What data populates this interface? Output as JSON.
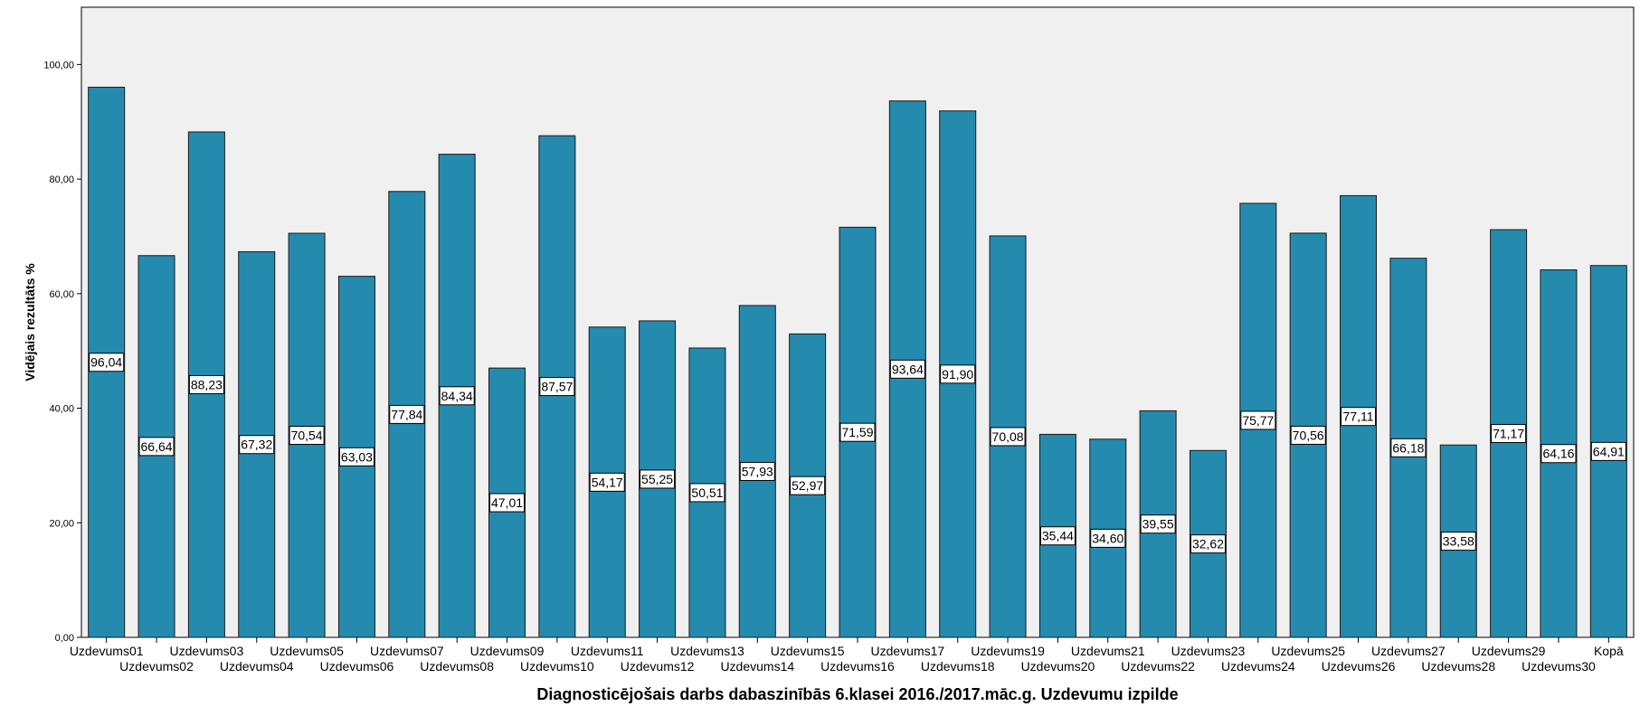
{
  "chart_data": {
    "type": "bar",
    "title": "",
    "xlabel": "Diagnosticējošais darbs dabaszinībās 6.klasei 2016./2017.māc.g. Uzdevumu izpilde",
    "ylabel": "Vidējais rezultāts %",
    "ylim": [
      0,
      110
    ],
    "yticks": [
      "0,00",
      "20,00",
      "40,00",
      "60,00",
      "80,00",
      "100,00"
    ],
    "ytick_values": [
      0,
      20,
      40,
      60,
      80,
      100
    ],
    "grid": false,
    "legend": "none",
    "categories": [
      "Uzdevums01",
      "Uzdevums02",
      "Uzdevums03",
      "Uzdevums04",
      "Uzdevums05",
      "Uzdevums06",
      "Uzdevums07",
      "Uzdevums08",
      "Uzdevums09",
      "Uzdevums10",
      "Uzdevums11",
      "Uzdevums12",
      "Uzdevums13",
      "Uzdevums14",
      "Uzdevums15",
      "Uzdevums16",
      "Uzdevums17",
      "Uzdevums18",
      "Uzdevums19",
      "Uzdevums20",
      "Uzdevums21",
      "Uzdevums22",
      "Uzdevums23",
      "Uzdevums24",
      "Uzdevums25",
      "Uzdevums26",
      "Uzdevums27",
      "Uzdevums28",
      "Uzdevums29",
      "Uzdevums30",
      "Kopā"
    ],
    "values": [
      96.04,
      66.64,
      88.23,
      67.32,
      70.54,
      63.03,
      77.84,
      84.34,
      47.01,
      87.57,
      54.17,
      55.25,
      50.51,
      57.93,
      52.97,
      71.59,
      93.64,
      91.9,
      70.08,
      35.44,
      34.6,
      39.55,
      32.62,
      75.77,
      70.56,
      77.11,
      66.18,
      33.58,
      71.17,
      64.16,
      64.91
    ],
    "data_labels": [
      "96,04",
      "66,64",
      "88,23",
      "67,32",
      "70,54",
      "63,03",
      "77,84",
      "84,34",
      "47,01",
      "87,57",
      "54,17",
      "55,25",
      "50,51",
      "57,93",
      "52,97",
      "71,59",
      "93,64",
      "91,90",
      "70,08",
      "35,44",
      "34,60",
      "39,55",
      "32,62",
      "75,77",
      "70,56",
      "77,11",
      "66,18",
      "33,58",
      "71,17",
      "64,16",
      "64,91"
    ]
  },
  "colors": {
    "bar_fill": "#248BAF",
    "bar_stroke": "#1a1a1a",
    "plot_background": "#F0F0F0",
    "page_background": "#FFFFFF",
    "axis_line": "#000000"
  }
}
